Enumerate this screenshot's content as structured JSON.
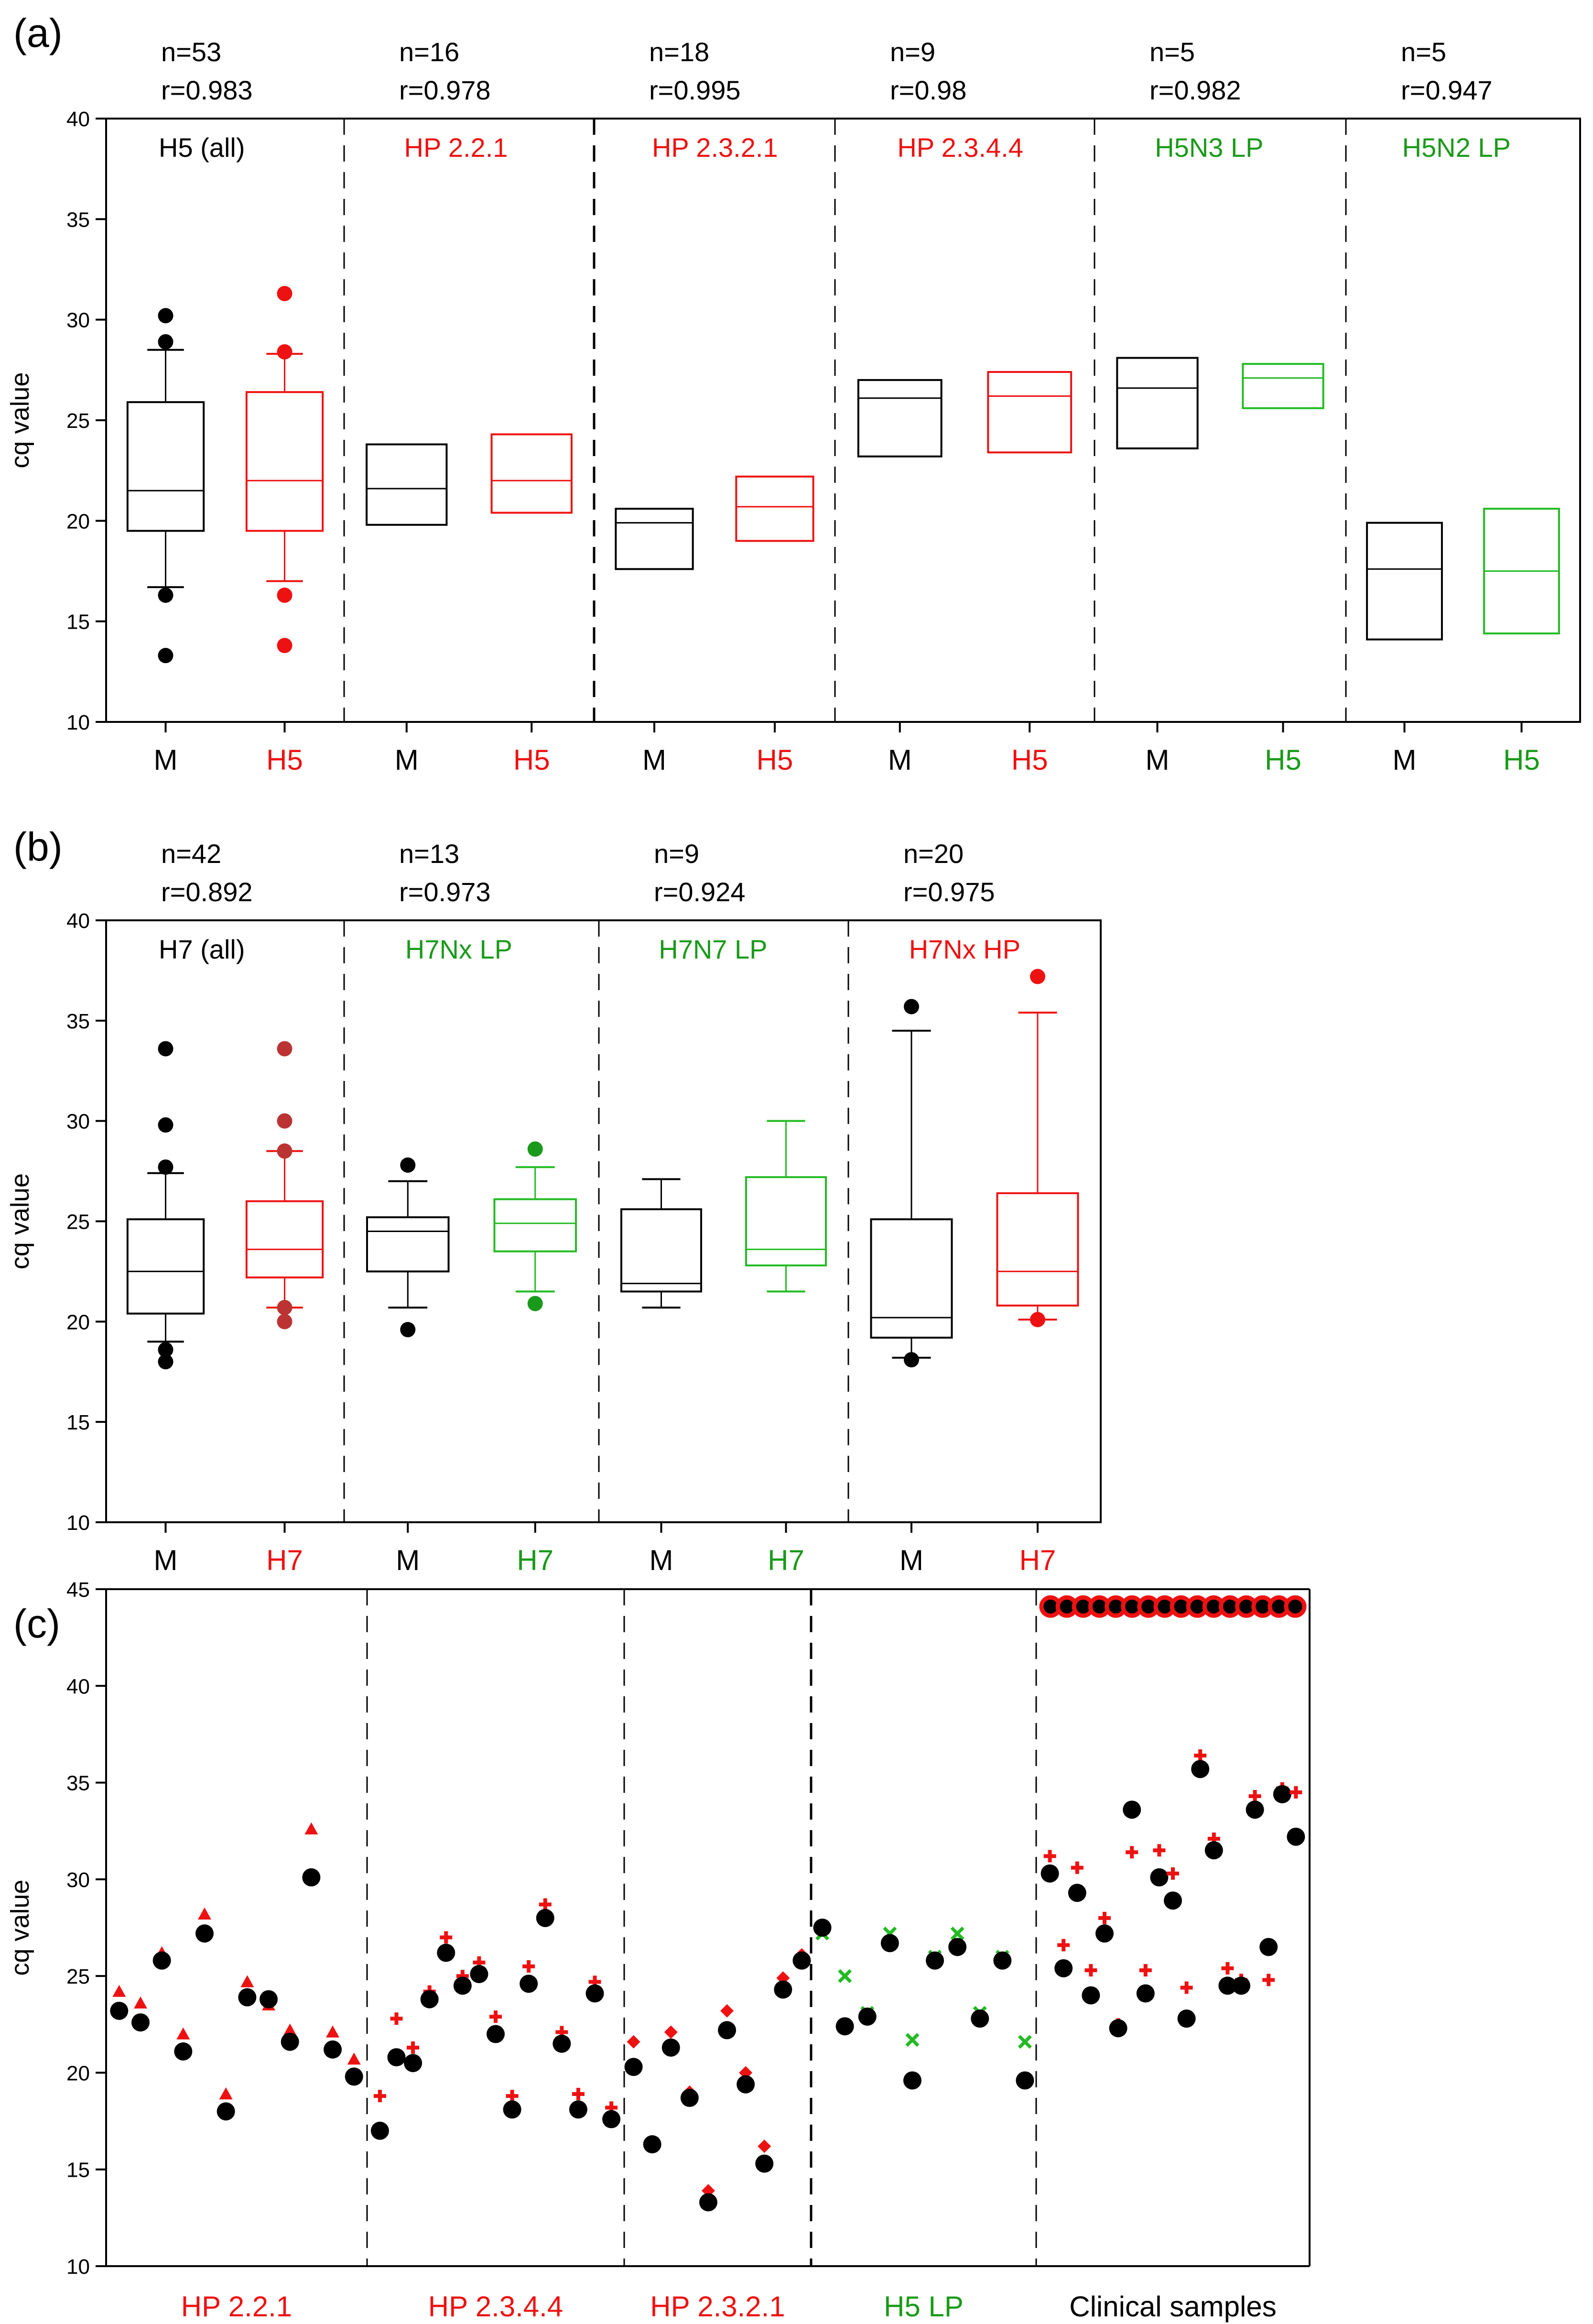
{
  "colors": {
    "black": "#000000",
    "red": "#ee1111",
    "green": "#1a9a1a",
    "brightgreen": "#22bb22",
    "darkred": "#bb3333"
  },
  "chart_data": [
    {
      "panel": "(a)",
      "type": "box",
      "ylabel": "cq value",
      "ylim": [
        10,
        40
      ],
      "yticks": [
        10,
        15,
        20,
        25,
        30,
        35,
        40
      ],
      "groups": [
        {
          "label": "H5 (all)",
          "label_color": "black",
          "n": "n=53",
          "r": "r=0.983",
          "boxes": [
            {
              "cat": "M",
              "cat_color": "black",
              "color": "black",
              "q1": 19.5,
              "median": 21.5,
              "q3": 25.9,
              "whislo": 16.7,
              "whishi": 28.5,
              "outliers": [
                13.3,
                16.3,
                28.9,
                30.2
              ]
            },
            {
              "cat": "H5",
              "cat_color": "red",
              "color": "red",
              "q1": 19.5,
              "median": 22.0,
              "q3": 26.4,
              "whislo": 17.0,
              "whishi": 28.3,
              "outliers": [
                13.8,
                16.3,
                28.4,
                31.3
              ]
            }
          ]
        },
        {
          "label": "HP 2.2.1",
          "label_color": "red",
          "n": "n=16",
          "r": "r=0.978",
          "boxes": [
            {
              "cat": "M",
              "cat_color": "black",
              "color": "black",
              "q1": 19.8,
              "median": 21.6,
              "q3": 23.8
            },
            {
              "cat": "H5",
              "cat_color": "red",
              "color": "red",
              "q1": 20.4,
              "median": 22.0,
              "q3": 24.3
            }
          ]
        },
        {
          "label": "HP 2.3.2.1",
          "label_color": "red",
          "n": "n=18",
          "r": "r=0.995",
          "boxes": [
            {
              "cat": "M",
              "cat_color": "black",
              "color": "black",
              "q1": 17.6,
              "median": 19.9,
              "q3": 20.6
            },
            {
              "cat": "H5",
              "cat_color": "red",
              "color": "red",
              "q1": 19.0,
              "median": 20.7,
              "q3": 22.2
            }
          ]
        },
        {
          "label": "HP 2.3.4.4",
          "label_color": "red",
          "n": "n=9",
          "r": "r=0.98",
          "boxes": [
            {
              "cat": "M",
              "cat_color": "black",
              "color": "black",
              "q1": 23.2,
              "median": 26.1,
              "q3": 27.0
            },
            {
              "cat": "H5",
              "cat_color": "red",
              "color": "red",
              "q1": 23.4,
              "median": 26.2,
              "q3": 27.4
            }
          ]
        },
        {
          "label": "H5N3 LP",
          "label_color": "green",
          "n": "n=5",
          "r": "r=0.982",
          "boxes": [
            {
              "cat": "M",
              "cat_color": "black",
              "color": "black",
              "q1": 23.6,
              "median": 26.6,
              "q3": 28.1
            },
            {
              "cat": "H5",
              "cat_color": "green",
              "color": "brightgreen",
              "q1": 25.6,
              "median": 27.1,
              "q3": 27.8
            }
          ]
        },
        {
          "label": "H5N2 LP",
          "label_color": "green",
          "n": "n=5",
          "r": "r=0.947",
          "boxes": [
            {
              "cat": "M",
              "cat_color": "black",
              "color": "black",
              "q1": 14.1,
              "median": 17.6,
              "q3": 19.9
            },
            {
              "cat": "H5",
              "cat_color": "green",
              "color": "brightgreen",
              "q1": 14.4,
              "median": 17.5,
              "q3": 20.6
            }
          ]
        }
      ]
    },
    {
      "panel": "(b)",
      "type": "box",
      "ylabel": "cq value",
      "ylim": [
        10,
        40
      ],
      "yticks": [
        10,
        15,
        20,
        25,
        30,
        35,
        40
      ],
      "groups": [
        {
          "label": "H7 (all)",
          "label_color": "black",
          "n": "n=42",
          "r": "r=0.892",
          "boxes": [
            {
              "cat": "M",
              "cat_color": "black",
              "color": "black",
              "q1": 20.4,
              "median": 22.5,
              "q3": 25.1,
              "whislo": 19.0,
              "whishi": 27.4,
              "outliers": [
                18.0,
                18.6,
                27.7,
                29.8,
                33.6
              ]
            },
            {
              "cat": "H7",
              "cat_color": "red",
              "color": "red",
              "q1": 22.2,
              "median": 23.6,
              "q3": 26.0,
              "whislo": 20.7,
              "whishi": 28.5,
              "outliers": [
                20.0,
                20.7,
                28.5,
                30.0,
                33.6
              ],
              "outlier_color": "darkred"
            }
          ]
        },
        {
          "label": "H7Nx LP",
          "label_color": "green",
          "n": "n=13",
          "r": "r=0.973",
          "boxes": [
            {
              "cat": "M",
              "cat_color": "black",
              "color": "black",
              "q1": 22.5,
              "median": 24.5,
              "q3": 25.2,
              "whislo": 20.7,
              "whishi": 27.0,
              "outliers": [
                19.6,
                27.8
              ]
            },
            {
              "cat": "H7",
              "cat_color": "green",
              "color": "brightgreen",
              "q1": 23.5,
              "median": 24.9,
              "q3": 26.1,
              "whislo": 21.5,
              "whishi": 27.7,
              "outliers": [
                20.9,
                28.6
              ],
              "outlier_color": "green"
            }
          ]
        },
        {
          "label": "H7N7 LP",
          "label_color": "green",
          "n": "n=9",
          "r": "r=0.924",
          "boxes": [
            {
              "cat": "M",
              "cat_color": "black",
              "color": "black",
              "q1": 21.5,
              "median": 21.9,
              "q3": 25.6,
              "whislo": 20.7,
              "whishi": 27.1
            },
            {
              "cat": "H7",
              "cat_color": "green",
              "color": "brightgreen",
              "q1": 22.8,
              "median": 23.6,
              "q3": 27.2,
              "whislo": 21.5,
              "whishi": 30.0
            }
          ]
        },
        {
          "label": "H7Nx HP",
          "label_color": "red",
          "n": "n=20",
          "r": "r=0.975",
          "boxes": [
            {
              "cat": "M",
              "cat_color": "black",
              "color": "black",
              "q1": 19.2,
              "median": 20.2,
              "q3": 25.1,
              "whislo": 18.2,
              "whishi": 34.5,
              "outliers": [
                18.1,
                35.7
              ]
            },
            {
              "cat": "H7",
              "cat_color": "red",
              "color": "red",
              "q1": 20.8,
              "median": 22.5,
              "q3": 26.4,
              "whislo": 20.1,
              "whishi": 35.4,
              "outliers": [
                20.1,
                37.2
              ]
            }
          ]
        }
      ]
    },
    {
      "panel": "(c)",
      "type": "scatter",
      "ylabel": "cq value",
      "ylim": [
        10,
        45
      ],
      "yticks": [
        10,
        15,
        20,
        25,
        30,
        35,
        40,
        45
      ],
      "groups": [
        {
          "label": "HP 2.2.1",
          "label_color": "red",
          "marker": "triangle",
          "black": [
            23.2,
            22.6,
            25.8,
            21.1,
            27.2,
            18.0,
            23.9,
            23.8,
            21.6,
            30.1,
            21.2,
            19.8
          ],
          "marks": [
            24.0,
            23.4,
            26.0,
            21.8,
            28.0,
            18.7,
            24.5,
            23.3,
            22.0,
            32.4,
            21.9,
            20.5
          ]
        },
        {
          "label": "HP 2.3.4.4",
          "label_color": "red",
          "marker": "plus",
          "black": [
            17.0,
            20.8,
            20.5,
            23.8,
            26.2,
            24.5,
            25.1,
            22.0,
            18.1,
            24.6,
            28.0,
            21.5,
            18.1,
            24.1,
            17.6
          ],
          "marks": [
            18.6,
            22.6,
            21.1,
            24.0,
            26.8,
            24.8,
            25.5,
            22.7,
            18.6,
            25.3,
            28.5,
            21.9,
            18.7,
            24.5,
            18.0
          ]
        },
        {
          "label": "HP 2.3.2.1",
          "label_color": "red",
          "marker": "diamond",
          "black": [
            20.3,
            16.3,
            21.3,
            18.7,
            13.3,
            22.2,
            19.4,
            15.3,
            24.3,
            25.8
          ],
          "marks": [
            21.4,
            16.2,
            21.9,
            18.8,
            13.7,
            23.0,
            19.8,
            16.0,
            24.7,
            25.9
          ]
        },
        {
          "label": "H5 LP",
          "label_color": "green",
          "marker": "x",
          "black": [
            27.5,
            22.4,
            22.9,
            26.7,
            19.6,
            25.8,
            26.5,
            22.8,
            25.8,
            19.6
          ],
          "marks": [
            27.0,
            24.8,
            22.9,
            27.0,
            21.5,
            25.8,
            27.0,
            22.9,
            25.8,
            21.4
          ]
        },
        {
          "label": "Clinical samples",
          "label_color": "black",
          "marker": "plus",
          "black": [
            30.3,
            25.4,
            29.3,
            24.0,
            27.2,
            22.3,
            33.6,
            24.1,
            30.1,
            28.9,
            22.8,
            35.7,
            31.5,
            24.5,
            24.5,
            33.6,
            26.5,
            34.4,
            32.2
          ],
          "marks": [
            31.0,
            26.4,
            30.4,
            25.1,
            27.8,
            22.3,
            31.2,
            25.1,
            31.3,
            30.1,
            24.2,
            36.2,
            31.9,
            25.2,
            24.6,
            34.1,
            24.6,
            34.5,
            34.3
          ],
          "saturated_count": 16,
          "saturated_value": 44.1
        }
      ]
    }
  ]
}
